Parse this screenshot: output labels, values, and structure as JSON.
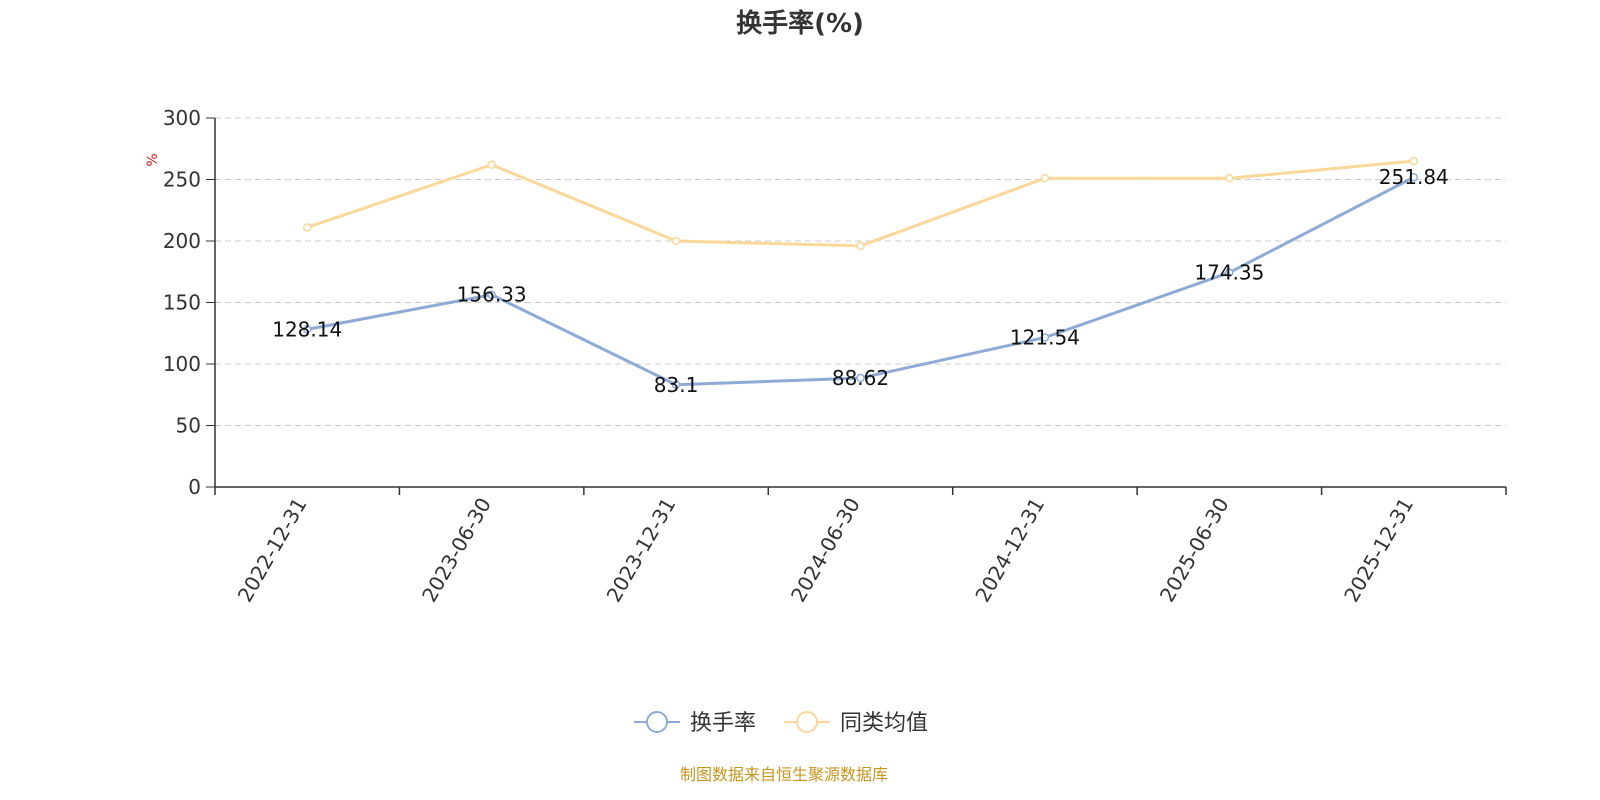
{
  "chart_data": {
    "type": "line",
    "title": "换手率(%)",
    "ylabel": "%",
    "xlabel": "",
    "ylim": [
      0,
      300
    ],
    "yticks": [
      0,
      50,
      100,
      150,
      200,
      250,
      300
    ],
    "grid": true,
    "legend_position": "bottom-center",
    "categories": [
      "2022-12-31",
      "2023-06-30",
      "2023-12-31",
      "2024-06-30",
      "2024-12-31",
      "2025-06-30",
      "2025-12-31"
    ],
    "series": [
      {
        "name": "换手率",
        "color": "#8eabd7",
        "values": [
          128.14,
          156.33,
          83.1,
          88.62,
          121.54,
          174.35,
          251.84
        ],
        "labels": [
          "128.14",
          "156.33",
          "83.1",
          "88.62",
          "121.54",
          "174.35",
          "251.84"
        ],
        "show_labels": true
      },
      {
        "name": "同类均值",
        "color": "#fbd899",
        "values": [
          211,
          262,
          200,
          196,
          251,
          251,
          265
        ],
        "show_labels": false
      }
    ],
    "source": "制图数据来自恒生聚源数据库",
    "source_color": "#c8951f",
    "unit_color": "#e02020"
  }
}
